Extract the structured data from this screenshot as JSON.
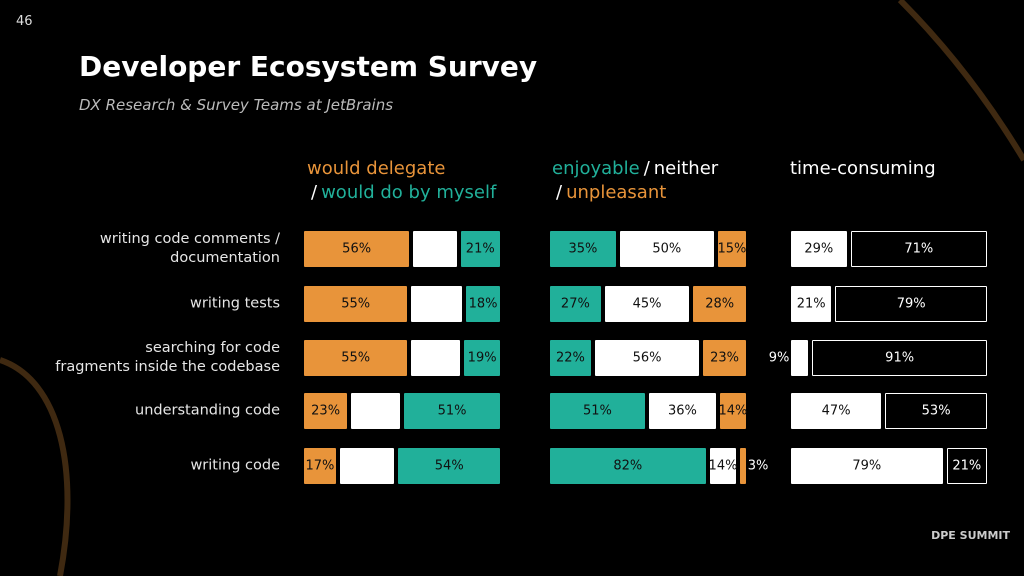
{
  "page_number": "46",
  "title": "Developer Ecosystem Survey",
  "subtitle": "DX Research & Survey Teams at JetBrains",
  "logo": "DPE SUMMIT",
  "chart_data": [
    {
      "type": "stacked-bar",
      "categories": [
        "writing code comments /\ndocumentation",
        "writing tests",
        "searching for code\nfragments inside the codebase",
        "understanding code",
        "writing code"
      ],
      "separator": "/",
      "series": [
        {
          "name": "would delegate",
          "color": "#e8943a",
          "values": [
            56,
            55,
            55,
            23,
            17
          ],
          "value_labels": [
            "56%",
            "55%",
            "55%",
            "23%",
            "17%"
          ]
        },
        {
          "color": "#ffffff",
          "values": [
            23,
            27,
            26,
            26,
            29
          ]
        },
        {
          "name": "would do by myself",
          "color": "#21b09a",
          "values": [
            21,
            18,
            19,
            51,
            54
          ],
          "value_labels": [
            "21%",
            "18%",
            "19%",
            "51%",
            "54%"
          ]
        }
      ]
    },
    {
      "type": "stacked-bar",
      "separator": "/",
      "series": [
        {
          "name": "enjoyable",
          "color": "#21b09a",
          "values": [
            35,
            27,
            22,
            51,
            82
          ],
          "value_labels": [
            "35%",
            "27%",
            "22%",
            "51%",
            "82%"
          ]
        },
        {
          "name": "neither",
          "color": "#ffffff",
          "values": [
            50,
            45,
            56,
            36,
            14
          ],
          "value_labels": [
            "50%",
            "45%",
            "56%",
            "36%",
            "14%"
          ]
        },
        {
          "name": "unpleasant",
          "color": "#e8943a",
          "values": [
            15,
            28,
            23,
            14,
            3
          ],
          "value_labels": [
            "15%",
            "28%",
            "23%",
            "14%",
            "3%"
          ]
        }
      ]
    },
    {
      "type": "stacked-bar",
      "title": "time-consuming",
      "series": [
        {
          "color": "#ffffff",
          "values": [
            29,
            21,
            9,
            47,
            79
          ],
          "value_labels": [
            "29%",
            "21%",
            "9%",
            "47%",
            "79%"
          ]
        },
        {
          "color": "#000000",
          "values": [
            71,
            79,
            91,
            53,
            21
          ],
          "value_labels": [
            "71%",
            "79%",
            "91%",
            "53%",
            "21%"
          ]
        }
      ]
    }
  ]
}
